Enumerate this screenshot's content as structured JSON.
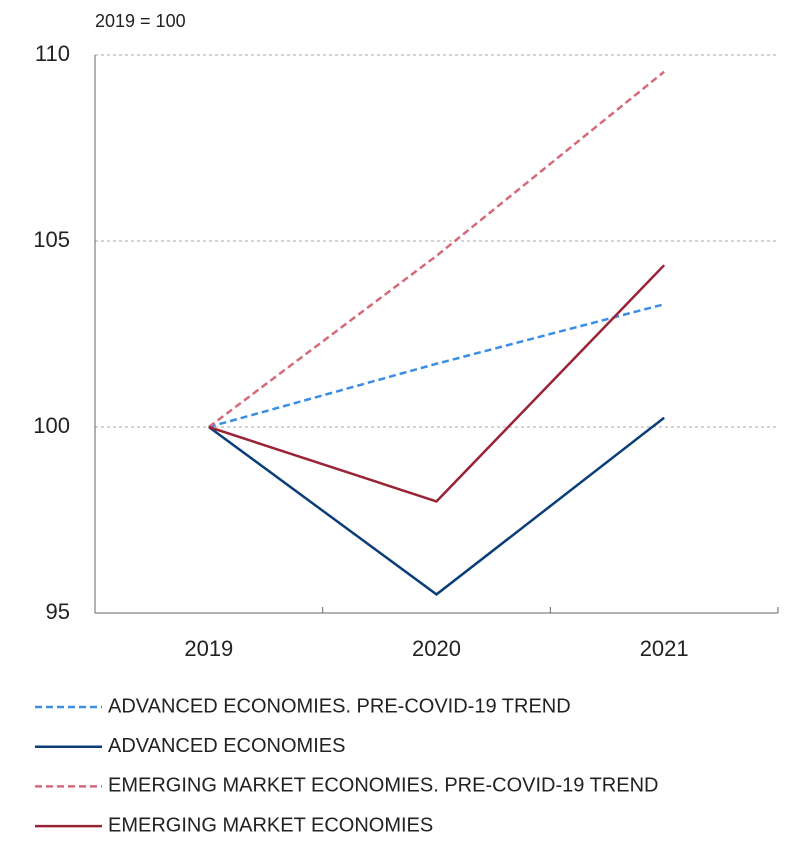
{
  "chart_data": {
    "type": "line",
    "unit_label": "2019 = 100",
    "categories": [
      "2019",
      "2020",
      "2021"
    ],
    "ylim": [
      95,
      110
    ],
    "yticks": [
      95,
      100,
      105,
      110
    ],
    "grid": true,
    "series": [
      {
        "name": "ADVANCED ECONOMIES. PRE-COVID-19 TREND",
        "color": "#3a8ee6",
        "dashed": true,
        "values": [
          100,
          101.7,
          103.3
        ]
      },
      {
        "name": "ADVANCED ECONOMIES",
        "color": "#0b3e78",
        "dashed": false,
        "values": [
          100,
          95.5,
          100.25
        ]
      },
      {
        "name": "EMERGING MARKET ECONOMIES. PRE-COVID-19 TREND",
        "color": "#d46a7a",
        "dashed": true,
        "values": [
          100,
          104.6,
          109.55
        ]
      },
      {
        "name": "EMERGING MARKET ECONOMIES",
        "color": "#9b2336",
        "dashed": false,
        "values": [
          100,
          98.0,
          104.35
        ]
      }
    ]
  }
}
